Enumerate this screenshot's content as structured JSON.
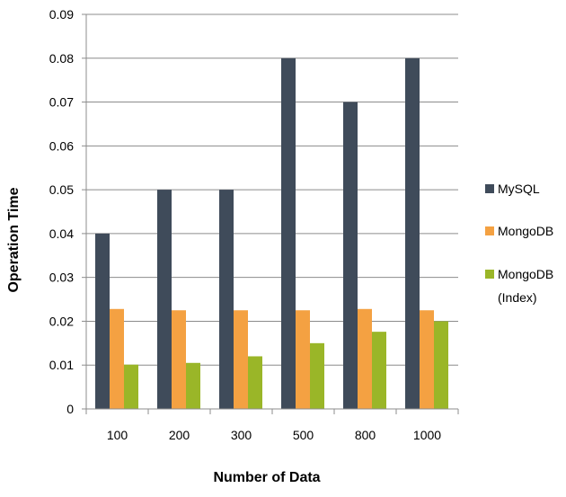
{
  "chart_data": {
    "type": "bar",
    "title": "",
    "xlabel": "Number of Data",
    "ylabel": "Operation Time",
    "categories": [
      "100",
      "200",
      "300",
      "500",
      "800",
      "1000"
    ],
    "series": [
      {
        "name": "MySQL",
        "color": "#3f4b5a",
        "values": [
          0.04,
          0.05,
          0.05,
          0.08,
          0.07,
          0.08
        ]
      },
      {
        "name": "MongoDB",
        "color": "#f4a142",
        "values": [
          0.0228,
          0.0225,
          0.0225,
          0.0225,
          0.0228,
          0.0225
        ]
      },
      {
        "name": "MongoDB (Index)",
        "legend_lines": [
          "MongoDB",
          "(Index)"
        ],
        "color": "#9ab628",
        "values": [
          0.0101,
          0.0105,
          0.012,
          0.015,
          0.0176,
          0.02
        ]
      }
    ],
    "ylim": [
      0,
      0.09
    ],
    "yticks": [
      "0",
      "0.01",
      "0.02",
      "0.03",
      "0.04",
      "0.05",
      "0.06",
      "0.07",
      "0.08",
      "0.09"
    ],
    "grid": true,
    "legend_position": "right"
  }
}
